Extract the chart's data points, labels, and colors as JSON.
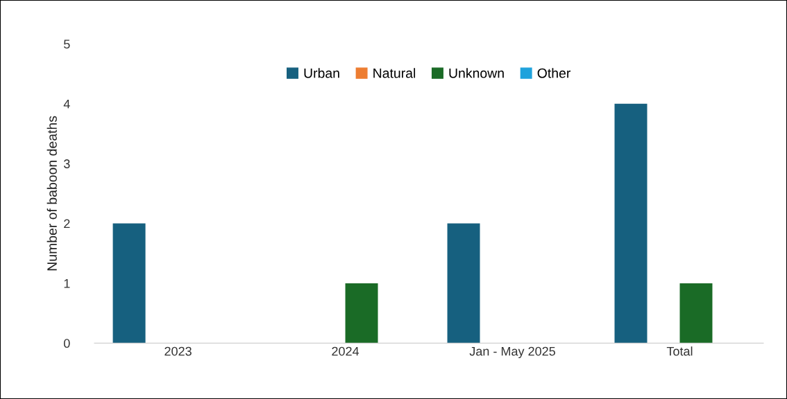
{
  "chart_data": {
    "type": "bar",
    "ylabel": "Number of baboon deaths",
    "categories": [
      "2023",
      "2024",
      "Jan - May 2025",
      "Total"
    ],
    "series": [
      {
        "name": "Urban",
        "color": "#16607f",
        "values": [
          2,
          0,
          2,
          4
        ]
      },
      {
        "name": "Natural",
        "color": "#ed7d31",
        "values": [
          0,
          0,
          0,
          0
        ]
      },
      {
        "name": "Unknown",
        "color": "#1a6b26",
        "values": [
          0,
          1,
          0,
          1
        ]
      },
      {
        "name": "Other",
        "color": "#1fa2dc",
        "values": [
          0,
          0,
          0,
          0
        ]
      }
    ],
    "ylim": [
      0,
      5
    ],
    "yticks": [
      0,
      1,
      2,
      3,
      4,
      5
    ],
    "grid": false,
    "legend": "top"
  }
}
